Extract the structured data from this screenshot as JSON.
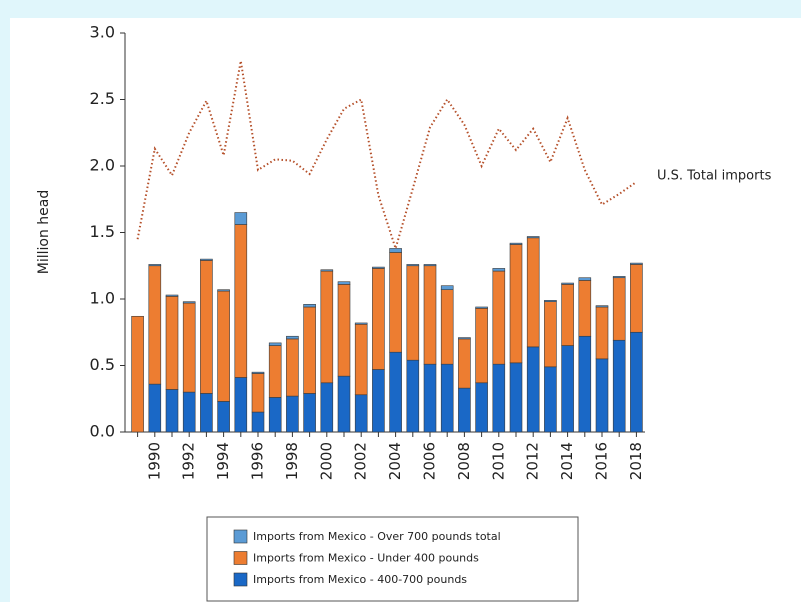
{
  "chart_data": {
    "type": "bar",
    "stacked": true,
    "y_label": "Million head",
    "categories": [
      null,
      "1990",
      null,
      "1992",
      null,
      "1994",
      null,
      "1996",
      null,
      "1998",
      null,
      "2000",
      null,
      "2002",
      null,
      "2004",
      null,
      "2006",
      null,
      "2008",
      null,
      "2010",
      null,
      "2012",
      null,
      "2014",
      null,
      "2016",
      null,
      "2018"
    ],
    "series": [
      {
        "name": "Imports from Mexico - 400-700 pounds",
        "color": "#1a68c6",
        "values": [
          0,
          0.36,
          0.32,
          0.3,
          0.29,
          0.23,
          0.41,
          0.15,
          0.26,
          0.27,
          0.29,
          0.37,
          0.42,
          0.28,
          0.47,
          0.6,
          0.54,
          0.51,
          0.51,
          0.33,
          0.37,
          0.51,
          0.52,
          0.64,
          0.49,
          0.65,
          0.72,
          0.55,
          0.69,
          0.75
        ]
      },
      {
        "name": "Imports from Mexico - Under 400 pounds",
        "color": "#ed7d31",
        "values": [
          0.87,
          0.89,
          0.7,
          0.67,
          1.0,
          0.83,
          1.15,
          0.29,
          0.39,
          0.43,
          0.65,
          0.84,
          0.69,
          0.53,
          0.76,
          0.75,
          0.71,
          0.74,
          0.56,
          0.37,
          0.56,
          0.7,
          0.89,
          0.82,
          0.49,
          0.46,
          0.42,
          0.39,
          0.47,
          0.51
        ]
      },
      {
        "name": "Imports from Mexico - Over 700 pounds total",
        "color": "#5b9bd5",
        "values": [
          0,
          0.01,
          0.01,
          0.01,
          0.01,
          0.01,
          0.09,
          0.01,
          0.02,
          0.02,
          0.02,
          0.01,
          0.02,
          0.01,
          0.01,
          0.03,
          0.01,
          0.01,
          0.03,
          0.01,
          0.01,
          0.02,
          0.01,
          0.01,
          0.01,
          0.01,
          0.02,
          0.01,
          0.01,
          0.01
        ]
      },
      {
        "name": "U.S. Total imports",
        "color": "#b5502a",
        "type": "line",
        "dotted": true,
        "values": [
          1.45,
          2.13,
          1.93,
          2.25,
          2.49,
          2.08,
          2.79,
          1.97,
          2.05,
          2.04,
          1.94,
          2.2,
          2.43,
          2.5,
          1.78,
          1.38,
          1.83,
          2.29,
          2.5,
          2.31,
          2.0,
          2.28,
          2.12,
          2.28,
          2.03,
          2.36,
          1.97,
          1.71,
          1.79,
          1.88
        ]
      }
    ],
    "ylim": [
      0,
      3
    ],
    "yticks": [
      {
        "value": 0,
        "label": "0.0"
      },
      0.5,
      {
        "value": 1,
        "label": "1.0"
      },
      1.5,
      {
        "value": 2,
        "label": "2.0"
      },
      2.5,
      {
        "value": 3,
        "label": "3.0"
      }
    ],
    "grid": false
  }
}
